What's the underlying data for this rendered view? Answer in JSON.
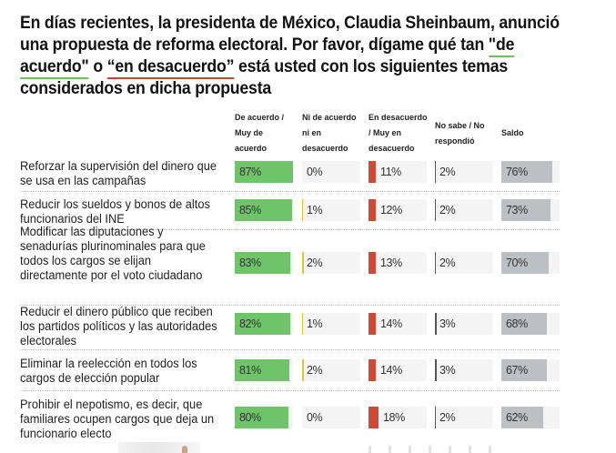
{
  "title": {
    "part1": "En días recientes, la presidenta de México, Claudia Sheinbaum, anunció una propuesta de reforma electoral. Por favor, dígame qué tan ",
    "agree_phrase": "\"de acuerdo\"",
    "connector": " o ",
    "disagree_phrase": "“en desacuerdo”",
    "part2": " está usted con los siguientes temas considerados en dicha propuesta"
  },
  "colors": {
    "agree": "#6fc46a",
    "neutral": "#e8c22e",
    "disagree": "#cc4a37",
    "dont_know": "#555555",
    "saldo": "#bcc0c5",
    "cell_bg": "#f4f4f4"
  },
  "chart_data": {
    "type": "table",
    "title": "En días recientes, la presidenta de México, Claudia Sheinbaum, anunció una propuesta de reforma electoral. Por favor, dígame qué tan \"de acuerdo\" o “en desacuerdo” está usted con los siguientes temas considerados en dicha propuesta",
    "columns": [
      "De acuerdo / Muy de acuerdo",
      "Ni de acuerdo ni en desacuerdo",
      "En desacuerdo / Muy en desacuerdo",
      "No sabe / No respondió",
      "Saldo"
    ],
    "unit": "%",
    "rows": [
      {
        "label": "Reforzar la supervisión del dinero que se usa en las campañas",
        "values": [
          87,
          0,
          11,
          2,
          76
        ]
      },
      {
        "label": "Reducir los sueldos y bonos de altos funcionarios del INE",
        "values": [
          85,
          1,
          12,
          2,
          73
        ]
      },
      {
        "label": "Modificar las diputaciones y senadurías plurinominales para que todos los cargos se elijan directamente por el voto ciudadano",
        "values": [
          83,
          2,
          13,
          2,
          70
        ]
      },
      {
        "label": "Reducir el dinero público que reciben los partidos políticos y las autoridades electorales",
        "values": [
          82,
          1,
          14,
          3,
          68
        ]
      },
      {
        "label": "Eliminar la reelección en todos los cargos de elección popular",
        "values": [
          81,
          2,
          14,
          3,
          67
        ]
      },
      {
        "label": "Prohibir el nepotismo, es decir, que familiares ocupen cargos que deja un funcionario electo",
        "values": [
          80,
          0,
          18,
          2,
          62
        ]
      }
    ]
  }
}
